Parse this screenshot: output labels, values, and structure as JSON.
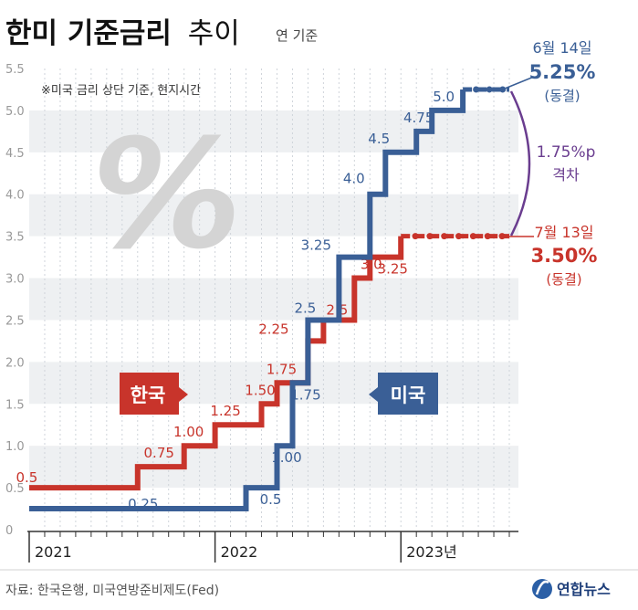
{
  "header": {
    "title_bold": "한미 기준금리",
    "title_light": "추이",
    "subtitle": "연 기준"
  },
  "note": "※미국 금리 상단 기준, 현지시간",
  "decor": {
    "percent_glyph": "%"
  },
  "source": "자료: 한국은행, 미국연방준비제도(Fed)",
  "logo": {
    "text": "연합뉴스"
  },
  "colors": {
    "us": "#3a5f96",
    "kr": "#c8342b",
    "gap": "#6a3d8f",
    "band": "#eef0f2"
  },
  "callouts": {
    "us": {
      "date": "6월 14일",
      "rate": "5.25%",
      "status": "(동결)"
    },
    "kr": {
      "date": "7월 13일",
      "rate": "3.50%",
      "status": "(동결)"
    },
    "gap": {
      "value": "1.75%p",
      "label": "격차"
    }
  },
  "chart_data": {
    "type": "line",
    "step": true,
    "ylim": [
      0,
      5.5
    ],
    "yticks": [
      "0",
      "0.5",
      "1.0",
      "1.5",
      "2.0",
      "2.5",
      "3.0",
      "3.5",
      "4.0",
      "4.5",
      "5.0",
      "5.5"
    ],
    "xlim": [
      "2021-01",
      "2023-08"
    ],
    "xticks": [
      "2021",
      "2022",
      "2023년"
    ],
    "series": [
      {
        "name": "한국",
        "points": [
          [
            "2021-01",
            0.5
          ],
          [
            "2021-08",
            0.75
          ],
          [
            "2021-11",
            1.0
          ],
          [
            "2022-01",
            1.25
          ],
          [
            "2022-04",
            1.5
          ],
          [
            "2022-05",
            1.75
          ],
          [
            "2022-07",
            2.25
          ],
          [
            "2022-08",
            2.5
          ],
          [
            "2022-10",
            3.0
          ],
          [
            "2022-11",
            3.25
          ],
          [
            "2023-01",
            3.5
          ],
          [
            "2023-08",
            3.5
          ]
        ],
        "labels": [
          "0.5",
          "0.75",
          "1.00",
          "1.25",
          "1.50",
          "1.75",
          "2.25",
          "2.5",
          "3.0",
          "3.25",
          ""
        ]
      },
      {
        "name": "미국",
        "points": [
          [
            "2021-01",
            0.25
          ],
          [
            "2022-03",
            0.5
          ],
          [
            "2022-05",
            1.0
          ],
          [
            "2022-06",
            1.75
          ],
          [
            "2022-07",
            2.5
          ],
          [
            "2022-09",
            3.25
          ],
          [
            "2022-11",
            4.0
          ],
          [
            "2022-12",
            4.5
          ],
          [
            "2023-02",
            4.75
          ],
          [
            "2023-03",
            5.0
          ],
          [
            "2023-05",
            5.25
          ],
          [
            "2023-08",
            5.25
          ]
        ],
        "labels": [
          "0.25",
          "0.5",
          "1.00",
          "1.75",
          "2.5",
          "3.25",
          "4.0",
          "4.5",
          "4.75",
          "5.0",
          ""
        ]
      }
    ]
  }
}
